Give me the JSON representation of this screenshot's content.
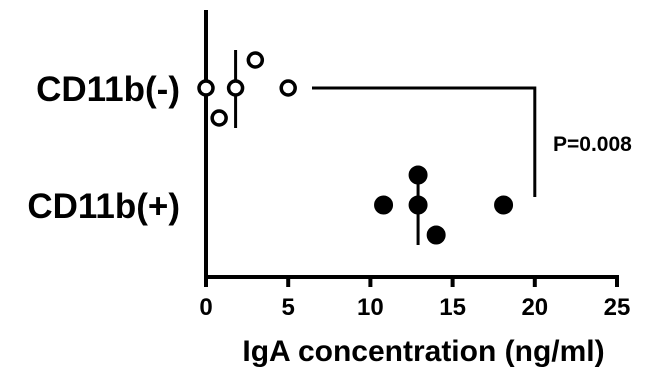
{
  "chart_data": {
    "type": "scatter",
    "title": "",
    "xlabel": "IgA concentration (ng/ml)",
    "ylabel": "",
    "xlim": [
      0,
      25
    ],
    "x_ticks": [
      0,
      5,
      10,
      15,
      20,
      25
    ],
    "x_tick_labels": [
      "0",
      "5",
      "10",
      "15",
      "20",
      "25"
    ],
    "categories": [
      "CD11b(-)",
      "CD11b(+)"
    ],
    "grid": false,
    "series": [
      {
        "category": "CD11b(-)",
        "marker": "open-circle",
        "values": [
          0,
          0.8,
          1.8,
          3,
          5
        ],
        "median": 1.8
      },
      {
        "category": "CD11b(+)",
        "marker": "filled-circle",
        "values": [
          10.8,
          12.9,
          12.9,
          14,
          18.1
        ],
        "median": 12.9
      }
    ],
    "annotation": {
      "text": "P=0.008",
      "type": "significance-bracket",
      "bracket_x": 20
    }
  }
}
